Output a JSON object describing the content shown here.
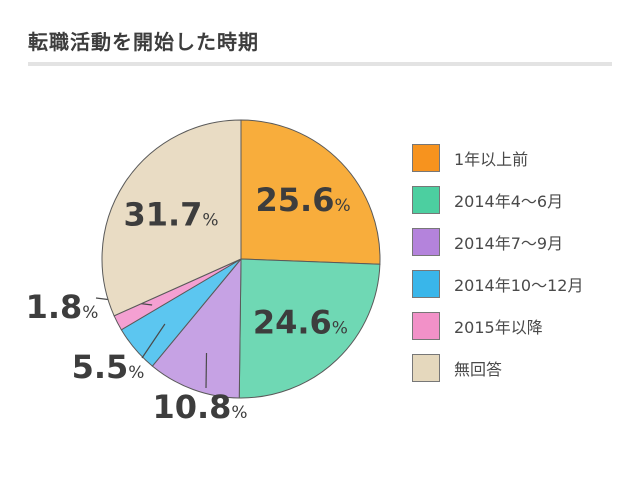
{
  "header": {
    "title": "転職活動を開始した時期"
  },
  "chart_data": {
    "type": "pie",
    "title": "転職活動を開始した時期",
    "unit": "%",
    "slices": [
      {
        "label": "1年以上前",
        "value": 25.6,
        "display": "25.6",
        "color": "#f8ad3c",
        "legend_color": "#f7931e"
      },
      {
        "label": "2014年4〜6月",
        "value": 24.6,
        "display": "24.6",
        "color": "#6fd8b4",
        "legend_color": "#4ccfa0"
      },
      {
        "label": "2014年7〜9月",
        "value": 10.8,
        "display": "10.8",
        "color": "#c6a2e4",
        "legend_color": "#b483dc"
      },
      {
        "label": "2014年10〜12月",
        "value": 5.5,
        "display": "5.5",
        "color": "#5cc6f0",
        "legend_color": "#39b6ea"
      },
      {
        "label": "2015年以降",
        "value": 1.8,
        "display": "1.8",
        "color": "#f4a0d2",
        "legend_color": "#f291c8"
      },
      {
        "label": "無回答",
        "value": 31.7,
        "display": "31.7",
        "color": "#e9dcc4",
        "legend_color": "#e5d8bd"
      }
    ],
    "legend_position": "right"
  }
}
